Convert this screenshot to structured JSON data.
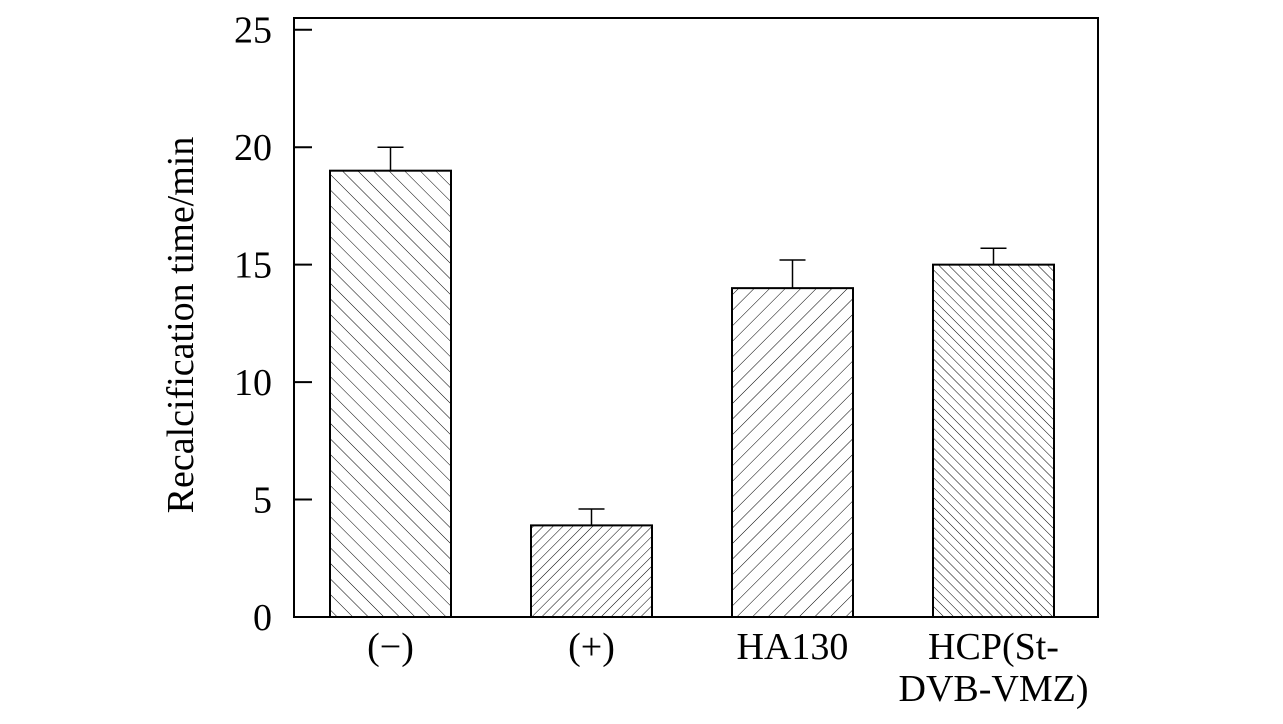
{
  "chart_data": {
    "type": "bar",
    "categories": [
      [
        "(−)"
      ],
      [
        "(+)"
      ],
      [
        "HA130"
      ],
      [
        "HCP(St-",
        "DVB-VMZ)"
      ]
    ],
    "values": [
      19.0,
      3.9,
      14.0,
      15.0
    ],
    "errors": [
      1.0,
      0.7,
      1.2,
      0.7
    ],
    "title": "",
    "xlabel": "",
    "ylabel": "Recalcification time/min",
    "ylim": [
      0,
      25.5
    ],
    "yticks": [
      0,
      5,
      10,
      15,
      20,
      25
    ],
    "grid": false,
    "legend": "none",
    "bar_fill": "#ffffff",
    "hatch_color": "#000000",
    "hatch_styles": [
      "backslash-wide",
      "slash-dense",
      "slash-wide",
      "backslash-dense"
    ]
  }
}
